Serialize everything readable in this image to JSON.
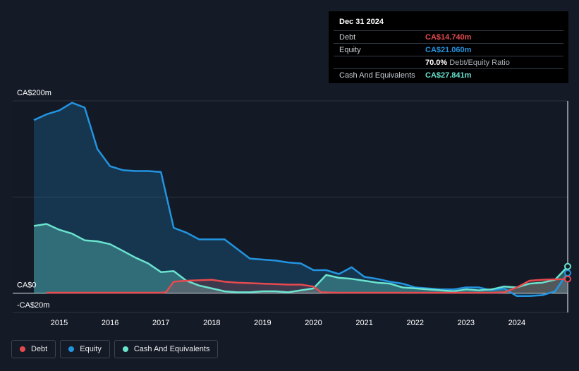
{
  "tooltip": {
    "date": "Dec 31 2024",
    "rows": [
      {
        "label": "Debt",
        "value": "CA$14.740m",
        "color": "#e64a4f"
      },
      {
        "label": "Equity",
        "value": "CA$21.060m",
        "color": "#2394e0"
      },
      {
        "label": "",
        "value": "70.0%",
        "sub": "Debt/Equity Ratio",
        "color": "#ffffff"
      },
      {
        "label": "Cash And Equivalents",
        "value": "CA$27.841m",
        "color": "#6ae3cf"
      }
    ]
  },
  "legend": [
    {
      "label": "Debt",
      "color": "#e64a4f"
    },
    {
      "label": "Equity",
      "color": "#2394e0"
    },
    {
      "label": "Cash And Equivalents",
      "color": "#6ae3cf"
    }
  ],
  "chart_data": {
    "type": "area",
    "y_tick_labels": [
      "CA$200m",
      "CA$0",
      "-CA$20m"
    ],
    "ylim": [
      -20,
      200
    ],
    "xlim": [
      2014.5,
      2025.0
    ],
    "x_tick_labels": [
      "2015",
      "2016",
      "2017",
      "2018",
      "2019",
      "2020",
      "2021",
      "2022",
      "2023",
      "2024"
    ],
    "x_ticks": [
      2015,
      2016,
      2017,
      2018,
      2019,
      2020,
      2021,
      2022,
      2023,
      2024
    ],
    "grid": true,
    "legend_position": "bottom-left",
    "series": [
      {
        "name": "Equity",
        "color": "#2394e0",
        "points": [
          [
            2014.5,
            180
          ],
          [
            2014.75,
            186
          ],
          [
            2015.0,
            190
          ],
          [
            2015.25,
            198
          ],
          [
            2015.5,
            193
          ],
          [
            2015.75,
            150
          ],
          [
            2016.0,
            132
          ],
          [
            2016.25,
            128
          ],
          [
            2016.5,
            127
          ],
          [
            2016.75,
            127
          ],
          [
            2017.0,
            126
          ],
          [
            2017.25,
            68
          ],
          [
            2017.5,
            63
          ],
          [
            2017.75,
            56
          ],
          [
            2018.0,
            56
          ],
          [
            2018.25,
            56
          ],
          [
            2018.5,
            46
          ],
          [
            2018.75,
            36
          ],
          [
            2019.0,
            35
          ],
          [
            2019.25,
            34
          ],
          [
            2019.5,
            32
          ],
          [
            2019.75,
            31
          ],
          [
            2020.0,
            24
          ],
          [
            2020.25,
            24
          ],
          [
            2020.5,
            20
          ],
          [
            2020.75,
            27
          ],
          [
            2021.0,
            17
          ],
          [
            2021.25,
            15
          ],
          [
            2021.5,
            12
          ],
          [
            2021.75,
            10
          ],
          [
            2022.0,
            6
          ],
          [
            2022.25,
            5
          ],
          [
            2022.5,
            4
          ],
          [
            2022.75,
            4
          ],
          [
            2023.0,
            6
          ],
          [
            2023.25,
            6
          ],
          [
            2023.5,
            3
          ],
          [
            2023.75,
            5
          ],
          [
            2024.0,
            -3
          ],
          [
            2024.25,
            -3
          ],
          [
            2024.5,
            -2
          ],
          [
            2024.75,
            2
          ],
          [
            2025.0,
            21.06
          ]
        ]
      },
      {
        "name": "Cash And Equivalents",
        "color": "#6ae3cf",
        "points": [
          [
            2014.5,
            70
          ],
          [
            2014.75,
            72
          ],
          [
            2015.0,
            66
          ],
          [
            2015.25,
            62
          ],
          [
            2015.5,
            55
          ],
          [
            2015.75,
            54
          ],
          [
            2016.0,
            51
          ],
          [
            2016.25,
            44
          ],
          [
            2016.5,
            37
          ],
          [
            2016.75,
            31
          ],
          [
            2017.0,
            22
          ],
          [
            2017.25,
            23
          ],
          [
            2017.5,
            13
          ],
          [
            2017.75,
            8
          ],
          [
            2018.0,
            5
          ],
          [
            2018.25,
            2
          ],
          [
            2018.5,
            1
          ],
          [
            2018.75,
            1
          ],
          [
            2019.0,
            2
          ],
          [
            2019.25,
            2
          ],
          [
            2019.5,
            1
          ],
          [
            2019.75,
            3
          ],
          [
            2020.0,
            5
          ],
          [
            2020.25,
            19
          ],
          [
            2020.5,
            16
          ],
          [
            2020.75,
            15
          ],
          [
            2021.0,
            13
          ],
          [
            2021.25,
            11
          ],
          [
            2021.5,
            10
          ],
          [
            2021.75,
            6
          ],
          [
            2022.0,
            5
          ],
          [
            2022.25,
            4
          ],
          [
            2022.5,
            3
          ],
          [
            2022.75,
            2
          ],
          [
            2023.0,
            4
          ],
          [
            2023.25,
            3
          ],
          [
            2023.5,
            4
          ],
          [
            2023.75,
            7
          ],
          [
            2024.0,
            6
          ],
          [
            2024.25,
            10
          ],
          [
            2024.5,
            11
          ],
          [
            2024.75,
            14
          ],
          [
            2025.0,
            27.841
          ]
        ]
      },
      {
        "name": "Debt",
        "color": "#e64a4f",
        "points": [
          [
            2014.75,
            0.5
          ],
          [
            2015.0,
            0.5
          ],
          [
            2015.5,
            0.5
          ],
          [
            2016.0,
            0.5
          ],
          [
            2016.5,
            0.5
          ],
          [
            2017.0,
            0.5
          ],
          [
            2017.1,
            1
          ],
          [
            2017.25,
            12
          ],
          [
            2017.5,
            13
          ],
          [
            2018.0,
            14
          ],
          [
            2018.25,
            12
          ],
          [
            2018.5,
            11
          ],
          [
            2019.0,
            10
          ],
          [
            2019.5,
            9
          ],
          [
            2019.75,
            9
          ],
          [
            2020.0,
            7
          ],
          [
            2020.15,
            1
          ],
          [
            2020.5,
            0.5
          ],
          [
            2021.0,
            0.5
          ],
          [
            2021.5,
            0.5
          ],
          [
            2022.0,
            0.5
          ],
          [
            2022.5,
            0.5
          ],
          [
            2023.0,
            0.5
          ],
          [
            2023.5,
            0.5
          ],
          [
            2023.75,
            1
          ],
          [
            2024.0,
            6
          ],
          [
            2024.25,
            13
          ],
          [
            2024.5,
            14
          ],
          [
            2024.75,
            14.5
          ],
          [
            2025.0,
            14.74
          ]
        ]
      }
    ]
  }
}
